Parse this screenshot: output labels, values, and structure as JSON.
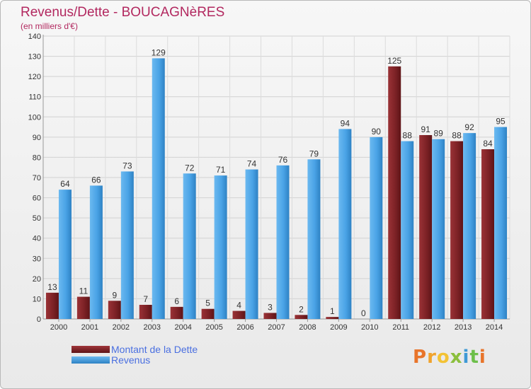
{
  "title": "Revenus/Dette - BOUCAGNèRES",
  "subtitle": "(en milliers d'€)",
  "logo": {
    "text": "Proxiti",
    "colors": [
      "#e8742a",
      "#f0a32d",
      "#f3c234",
      "#8bbf3d",
      "#3f9ad6",
      "#6dbf4a",
      "#e8742a"
    ]
  },
  "chart_data": {
    "type": "bar",
    "categories": [
      "2000",
      "2001",
      "2002",
      "2003",
      "2004",
      "2005",
      "2006",
      "2007",
      "2008",
      "2009",
      "2010",
      "2011",
      "2012",
      "2013",
      "2014"
    ],
    "series": [
      {
        "name": "Montant de la Dette",
        "color": "#8b2a2e",
        "values": [
          13,
          11,
          9,
          7,
          6,
          5,
          4,
          3,
          2,
          1,
          0,
          125,
          91,
          88,
          84
        ]
      },
      {
        "name": "Revenus",
        "color": "#4aa3e6",
        "values": [
          64,
          66,
          73,
          129,
          72,
          71,
          74,
          76,
          79,
          94,
          90,
          88,
          89,
          92,
          95
        ]
      }
    ],
    "ylim": [
      0,
      140
    ],
    "yticks": [
      0,
      10,
      20,
      30,
      40,
      50,
      60,
      70,
      80,
      90,
      100,
      110,
      120,
      130,
      140
    ],
    "grid": true,
    "legend": "bottom-left"
  }
}
